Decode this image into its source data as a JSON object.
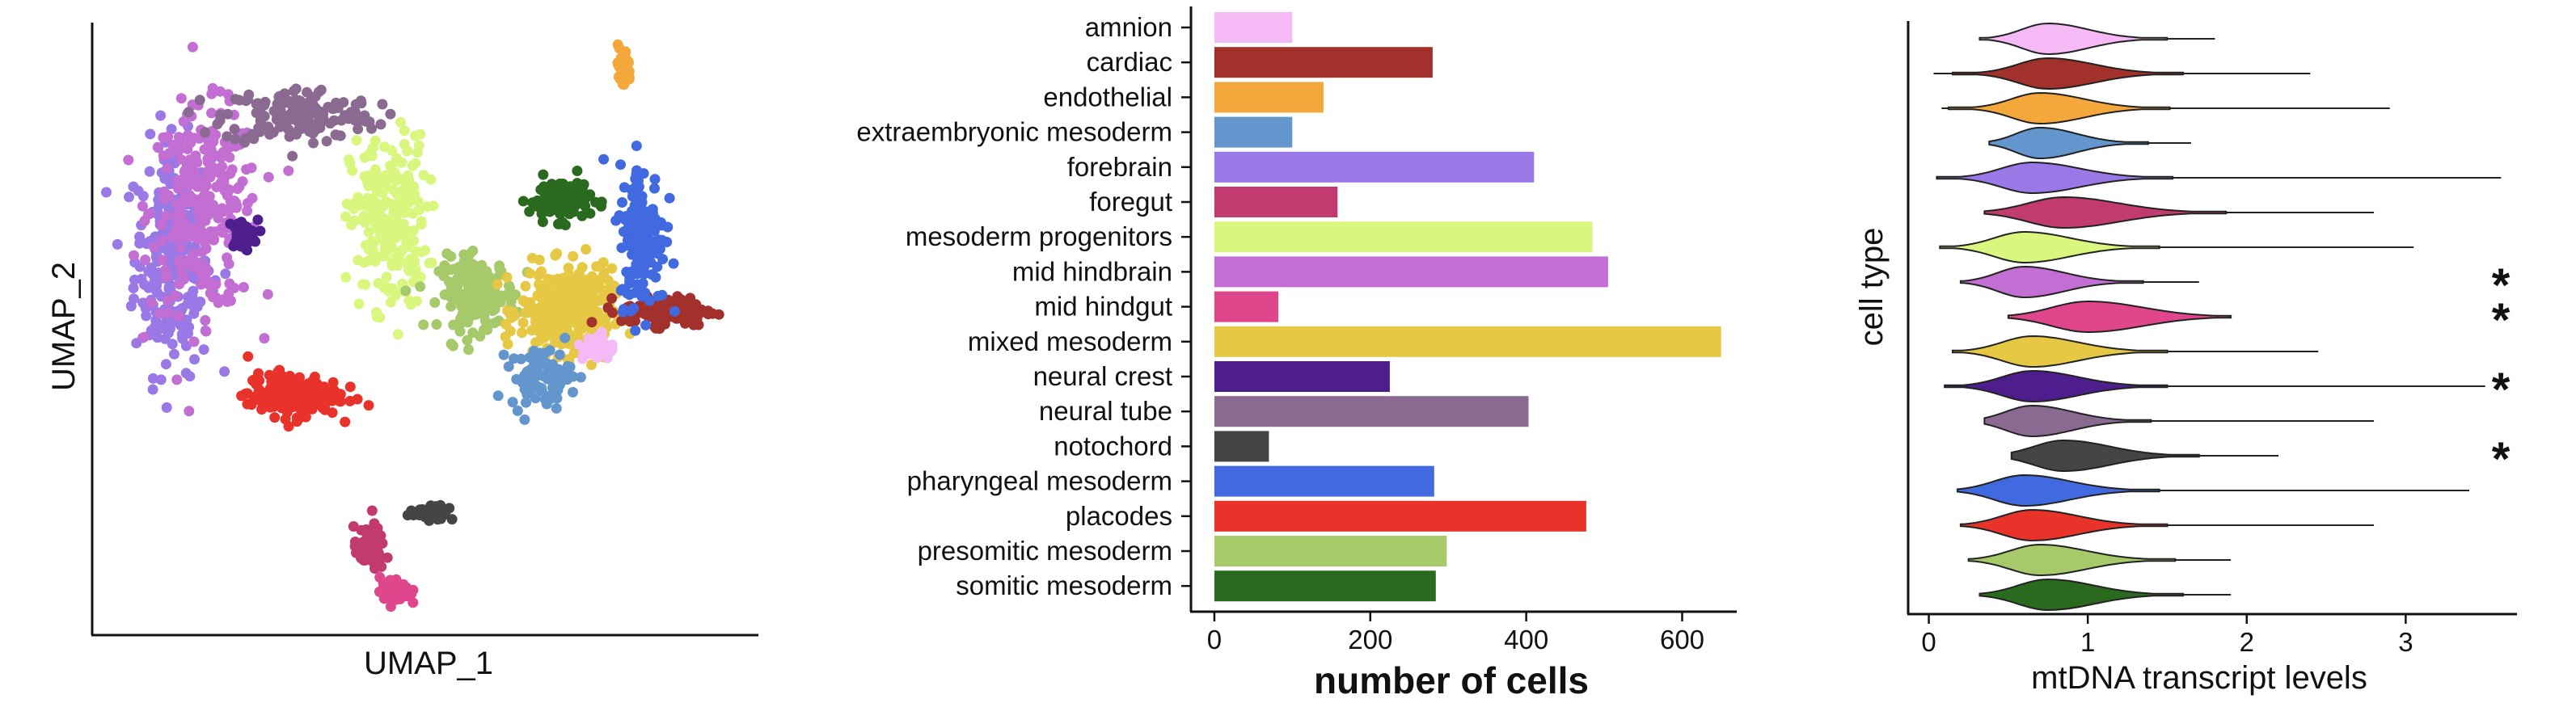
{
  "colors": {
    "amnion": "#f5b9f5",
    "cardiac": "#a2302b",
    "endothelial": "#f4a83c",
    "extraembryonic mesoderm": "#6396cd",
    "forebrain": "#9a78e6",
    "foregut": "#c13b6e",
    "mesoderm progenitors": "#d9f77f",
    "mid hindbrain": "#c26ed2",
    "mid hindgut": "#e0468c",
    "mixed mesoderm": "#e6c845",
    "neural crest": "#4e1e8e",
    "neural tube": "#8a6a91",
    "notochord": "#454545",
    "pharyngeal mesoderm": "#4169e0",
    "placodes": "#e8322a",
    "presomitic mesoderm": "#a6c96a",
    "somitic mesoderm": "#2a6a1f"
  },
  "chart_data": [
    {
      "type": "scatter",
      "xlabel": "UMAP_1",
      "ylabel": "UMAP_2",
      "clusters": [
        {
          "name": "forebrain",
          "cx": 0.1,
          "cy": 0.62,
          "sx": 0.05,
          "sy": 0.16,
          "n": 260
        },
        {
          "name": "mid hindbrain",
          "cx": 0.15,
          "cy": 0.7,
          "sx": 0.07,
          "sy": 0.14,
          "n": 280
        },
        {
          "name": "neural crest",
          "cx": 0.21,
          "cy": 0.66,
          "sx": 0.02,
          "sy": 0.02,
          "n": 40
        },
        {
          "name": "neural tube",
          "cx": 0.3,
          "cy": 0.86,
          "sx": 0.1,
          "sy": 0.04,
          "n": 160
        },
        {
          "name": "mesoderm progenitors",
          "cx": 0.44,
          "cy": 0.68,
          "sx": 0.05,
          "sy": 0.12,
          "n": 230
        },
        {
          "name": "presomitic mesoderm",
          "cx": 0.58,
          "cy": 0.56,
          "sx": 0.05,
          "sy": 0.05,
          "n": 170
        },
        {
          "name": "somitic mesoderm",
          "cx": 0.71,
          "cy": 0.72,
          "sx": 0.04,
          "sy": 0.03,
          "n": 110
        },
        {
          "name": "mixed mesoderm",
          "cx": 0.72,
          "cy": 0.53,
          "sx": 0.06,
          "sy": 0.06,
          "n": 340
        },
        {
          "name": "cardiac",
          "cx": 0.88,
          "cy": 0.53,
          "sx": 0.06,
          "sy": 0.02,
          "n": 130
        },
        {
          "name": "pharyngeal mesoderm",
          "cx": 0.84,
          "cy": 0.66,
          "sx": 0.03,
          "sy": 0.1,
          "n": 170
        },
        {
          "name": "endothelial",
          "cx": 0.81,
          "cy": 0.94,
          "sx": 0.01,
          "sy": 0.03,
          "n": 45
        },
        {
          "name": "extraembryonic mesoderm",
          "cx": 0.68,
          "cy": 0.42,
          "sx": 0.04,
          "sy": 0.04,
          "n": 80
        },
        {
          "name": "amnion",
          "cx": 0.77,
          "cy": 0.47,
          "sx": 0.02,
          "sy": 0.02,
          "n": 50
        },
        {
          "name": "placodes",
          "cx": 0.29,
          "cy": 0.39,
          "sx": 0.06,
          "sy": 0.03,
          "n": 200
        },
        {
          "name": "foregut",
          "cx": 0.41,
          "cy": 0.13,
          "sx": 0.02,
          "sy": 0.03,
          "n": 80
        },
        {
          "name": "mid hindgut",
          "cx": 0.45,
          "cy": 0.06,
          "sx": 0.02,
          "sy": 0.02,
          "n": 50
        },
        {
          "name": "notochord",
          "cx": 0.51,
          "cy": 0.19,
          "sx": 0.03,
          "sy": 0.01,
          "n": 35
        }
      ]
    },
    {
      "type": "bar",
      "orientation": "horizontal",
      "xlabel": "number of cells",
      "xlim": [
        -30,
        670
      ],
      "xticks": [
        0,
        200,
        400,
        600
      ],
      "categories": [
        "amnion",
        "cardiac",
        "endothelial",
        "extraembryonic mesoderm",
        "forebrain",
        "foregut",
        "mesoderm progenitors",
        "mid hindbrain",
        "mid hindgut",
        "mixed mesoderm",
        "neural crest",
        "neural tube",
        "notochord",
        "pharyngeal mesoderm",
        "placodes",
        "presomitic mesoderm",
        "somitic mesoderm"
      ],
      "values": [
        100,
        280,
        140,
        100,
        410,
        158,
        485,
        505,
        82,
        650,
        225,
        403,
        70,
        282,
        477,
        298,
        284
      ]
    },
    {
      "type": "violin",
      "xlabel": "mtDNA transcript levels",
      "ylabel": "cell type",
      "xlim": [
        -0.13,
        3.7
      ],
      "xticks": [
        0,
        1,
        2,
        3
      ],
      "annotation": "*",
      "violins": [
        {
          "name": "amnion",
          "min": 0.32,
          "max": 1.8,
          "median": 0.75,
          "spread": 0.22,
          "star": false
        },
        {
          "name": "cardiac",
          "min": 0.03,
          "max": 2.4,
          "median": 0.75,
          "spread": 0.25,
          "star": false
        },
        {
          "name": "endothelial",
          "min": 0.08,
          "max": 2.9,
          "median": 0.7,
          "spread": 0.24,
          "star": false
        },
        {
          "name": "extraembryonic mesoderm",
          "min": 0.38,
          "max": 1.65,
          "median": 0.7,
          "spread": 0.2,
          "star": false
        },
        {
          "name": "forebrain",
          "min": 0.05,
          "max": 3.6,
          "median": 0.65,
          "spread": 0.26,
          "star": false
        },
        {
          "name": "foregut",
          "min": 0.35,
          "max": 2.8,
          "median": 0.85,
          "spread": 0.3,
          "star": false
        },
        {
          "name": "mesoderm progenitors",
          "min": 0.07,
          "max": 3.05,
          "median": 0.6,
          "spread": 0.25,
          "star": false
        },
        {
          "name": "mid hindbrain",
          "min": 0.2,
          "max": 1.7,
          "median": 0.6,
          "spread": 0.22,
          "star": true
        },
        {
          "name": "mid hindgut",
          "min": 0.5,
          "max": 1.9,
          "median": 1.0,
          "spread": 0.3,
          "star": true
        },
        {
          "name": "mixed mesoderm",
          "min": 0.15,
          "max": 2.45,
          "median": 0.65,
          "spread": 0.25,
          "star": false
        },
        {
          "name": "neural crest",
          "min": 0.1,
          "max": 3.5,
          "median": 0.65,
          "spread": 0.25,
          "star": true
        },
        {
          "name": "neural tube",
          "min": 0.35,
          "max": 2.8,
          "median": 0.65,
          "spread": 0.22,
          "star": false
        },
        {
          "name": "notochord",
          "min": 0.52,
          "max": 2.2,
          "median": 0.85,
          "spread": 0.25,
          "star": true
        },
        {
          "name": "pharyngeal mesoderm",
          "min": 0.18,
          "max": 3.4,
          "median": 0.6,
          "spread": 0.25,
          "star": false
        },
        {
          "name": "placodes",
          "min": 0.2,
          "max": 2.8,
          "median": 0.65,
          "spread": 0.25,
          "star": false
        },
        {
          "name": "presomitic mesoderm",
          "min": 0.25,
          "max": 1.9,
          "median": 0.7,
          "spread": 0.25,
          "star": false
        },
        {
          "name": "somitic mesoderm",
          "min": 0.32,
          "max": 1.9,
          "median": 0.75,
          "spread": 0.25,
          "star": false
        }
      ]
    }
  ]
}
